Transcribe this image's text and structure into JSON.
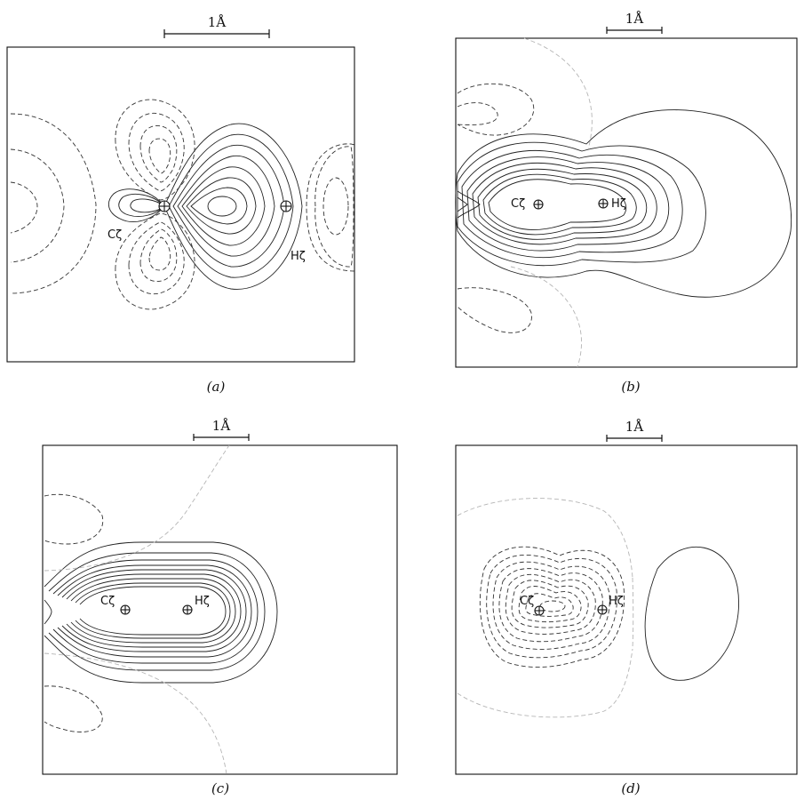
{
  "figure": {
    "panels": [
      {
        "id": "a",
        "label": "(a)",
        "scale_bar": "1Å",
        "atoms": [
          "Cζ",
          "Hζ"
        ]
      },
      {
        "id": "b",
        "label": "(b)",
        "scale_bar": "1Å",
        "atoms": [
          "Cζ",
          "Hζ"
        ]
      },
      {
        "id": "c",
        "label": "(c)",
        "scale_bar": "1Å",
        "atoms": [
          "Cζ",
          "Hζ"
        ]
      },
      {
        "id": "d",
        "label": "(d)",
        "scale_bar": "1Å",
        "atoms": [
          "Cζ",
          "Hζ"
        ]
      }
    ]
  }
}
